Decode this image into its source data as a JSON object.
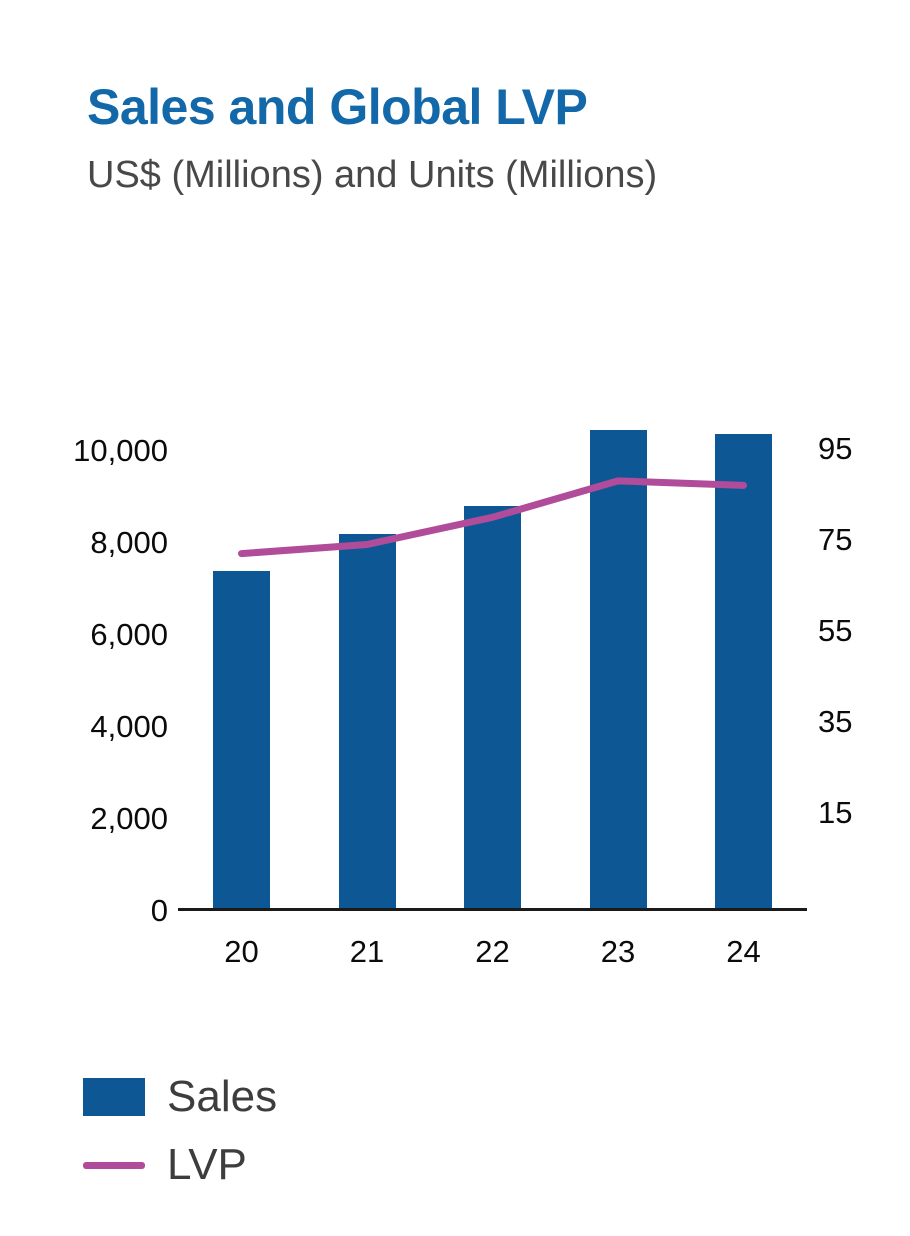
{
  "header": {
    "title": "Sales and Global LVP",
    "subtitle": "US$ (Millions) and Units (Millions)"
  },
  "chart_data": {
    "type": "bar+line",
    "categories": [
      "20",
      "21",
      "22",
      "23",
      "24"
    ],
    "series": [
      {
        "name": "Sales",
        "type": "bar",
        "axis": "left",
        "unit": "US$ millions",
        "values": [
          7400,
          8200,
          8800,
          10450,
          10370
        ]
      },
      {
        "name": "LVP",
        "type": "line",
        "axis": "right",
        "unit": "units millions",
        "values": [
          72,
          74,
          80,
          88,
          87
        ]
      }
    ],
    "left_axis": {
      "range": [
        0,
        10500
      ],
      "ticks": [
        {
          "label": "10,000",
          "value": 10000
        },
        {
          "label": "8,000",
          "value": 8000
        },
        {
          "label": "6,000",
          "value": 6000
        },
        {
          "label": "4,000",
          "value": 4000
        },
        {
          "label": "2,000",
          "value": 2000
        },
        {
          "label": "0",
          "value": 0
        }
      ]
    },
    "right_axis": {
      "ticks": [
        {
          "label": "95",
          "value": 95
        },
        {
          "label": "75",
          "value": 75
        },
        {
          "label": "55",
          "value": 55
        },
        {
          "label": "35",
          "value": 35
        },
        {
          "label": "15",
          "value": 15
        }
      ]
    },
    "grid": "off",
    "legend": {
      "position": "bottom-left",
      "entries": [
        {
          "label": "Sales",
          "marker": "rect"
        },
        {
          "label": "LVP",
          "marker": "line"
        }
      ]
    }
  },
  "colors": {
    "background": "#FFFFFF",
    "title": "#1268A8",
    "subtitle": "#484848",
    "bar": "#0E5795",
    "line": "#B04C99",
    "axis_text": "#0B0B0B",
    "axis_line": "#1A1A1A",
    "legend_text": "#3D3D3D"
  }
}
